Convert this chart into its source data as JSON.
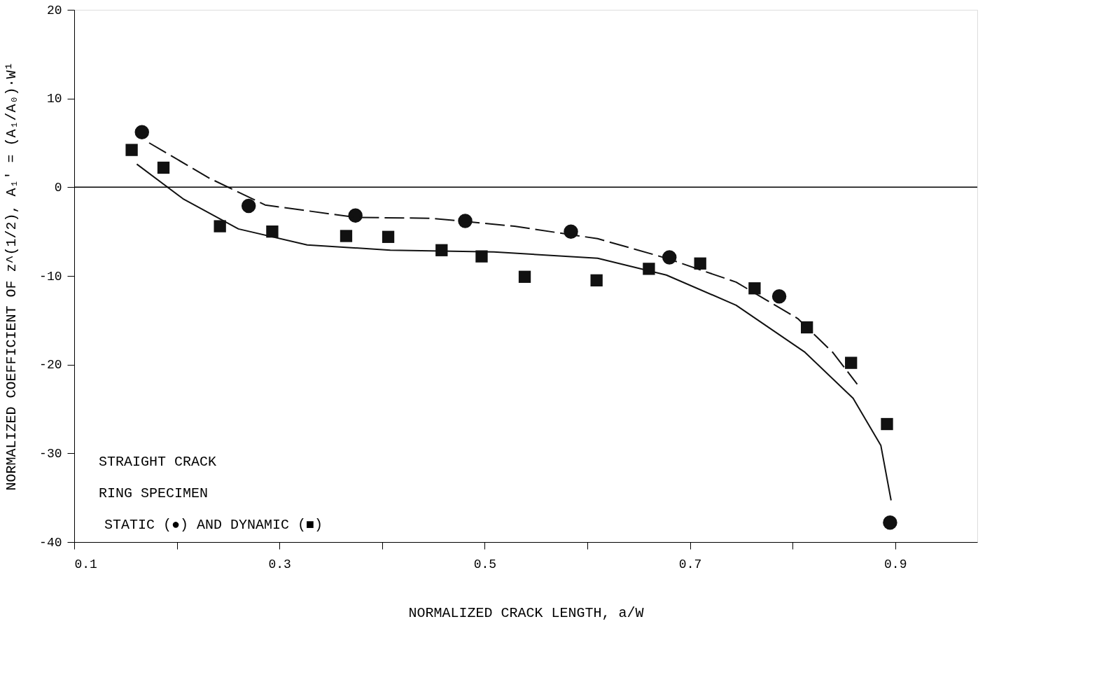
{
  "chart_data": {
    "type": "scatter",
    "xlabel": "NORMALIZED CRACK LENGTH, a/W",
    "ylabel": "NORMALIZED COEFFICIENT OF z^(1/2), A₁' = (A₁/A₀)·W¹",
    "xlim": [
      0.1,
      0.98
    ],
    "ylim": [
      -40,
      20
    ],
    "xticks": [
      0.1,
      {
        "value": 0.2,
        "label": null
      },
      0.3,
      {
        "value": 0.4,
        "label": null
      },
      0.5,
      {
        "value": 0.6,
        "label": null
      },
      0.7,
      {
        "value": 0.8,
        "label": null
      },
      0.9
    ],
    "yticks": [
      -40,
      -30,
      -20,
      -10,
      0,
      10,
      20
    ],
    "grid": false,
    "ref_lines": [
      {
        "axis": "y",
        "value": 0,
        "color": "#000000",
        "line_style": "solid"
      }
    ],
    "annotations": [
      "STRAIGHT CRACK",
      "RING SPECIMEN",
      "STATIC (●) AND DYNAMIC (■)"
    ],
    "series": [
      {
        "marker": "circle",
        "color": "#111111",
        "x": [
          0.166,
          0.27,
          0.374,
          0.481,
          0.584,
          0.68,
          0.787,
          0.895
        ],
        "values": [
          6.2,
          -2.1,
          -3.2,
          -3.8,
          -5.0,
          -7.9,
          -12.3,
          -37.8
        ]
      },
      {
        "marker": "square",
        "color": "#111111",
        "x": [
          0.156,
          0.187,
          0.242,
          0.293,
          0.365,
          0.406,
          0.458,
          0.497,
          0.539,
          0.609,
          0.66,
          0.71,
          0.763,
          0.814,
          0.857,
          0.892
        ],
        "values": [
          4.2,
          2.2,
          -4.4,
          -5.0,
          -5.5,
          -5.6,
          -7.1,
          -7.8,
          -10.1,
          -10.5,
          -9.2,
          -8.6,
          -11.4,
          -15.8,
          -19.8,
          -26.7
        ]
      },
      {
        "type": "line",
        "line_style": "dashed",
        "color": "#111111",
        "x": [
          0.173,
          0.232,
          0.286,
          0.374,
          0.448,
          0.529,
          0.61,
          0.677,
          0.745,
          0.805,
          0.839,
          0.863
        ],
        "values": [
          5.0,
          1.0,
          -2.0,
          -3.4,
          -3.5,
          -4.4,
          -5.8,
          -8.0,
          -10.7,
          -14.8,
          -18.6,
          -22.2
        ]
      },
      {
        "type": "line",
        "line_style": "solid",
        "color": "#111111",
        "x": [
          0.161,
          0.206,
          0.26,
          0.327,
          0.408,
          0.509,
          0.61,
          0.677,
          0.745,
          0.812,
          0.859,
          0.886,
          0.896
        ],
        "values": [
          2.6,
          -1.3,
          -4.7,
          -6.5,
          -7.1,
          -7.3,
          -8.0,
          -9.9,
          -13.3,
          -18.6,
          -23.8,
          -29.1,
          -35.3
        ]
      }
    ]
  }
}
